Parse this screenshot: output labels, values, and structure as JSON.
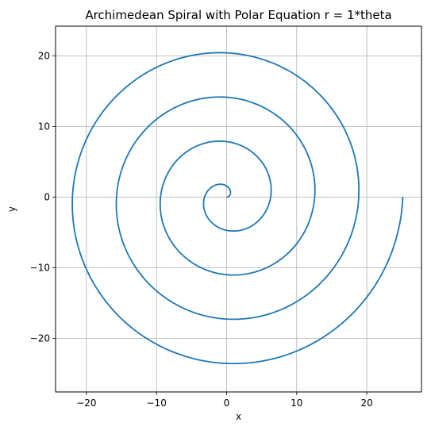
{
  "chart_data": {
    "type": "line",
    "title": "Archimedean Spiral with Polar Equation r = 1*theta",
    "xlabel": "x",
    "ylabel": "y",
    "xlim": [
      -24.4,
      27.8
    ],
    "ylim": [
      -27.6,
      24.2
    ],
    "x_ticks": [
      -20,
      -10,
      0,
      10,
      20
    ],
    "y_ticks": [
      -20,
      -10,
      0,
      10,
      20
    ],
    "x_tick_labels": [
      "−20",
      "−10",
      "0",
      "10",
      "20"
    ],
    "y_tick_labels": [
      "−20",
      "−10",
      "0",
      "10",
      "20"
    ],
    "grid": true,
    "series": [
      {
        "name": "r = 1*theta",
        "equation": "r = 1*theta",
        "a": 1,
        "theta_min": 0,
        "theta_max": 25.1327,
        "samples": 1000,
        "color": "#1f77b4"
      }
    ]
  }
}
